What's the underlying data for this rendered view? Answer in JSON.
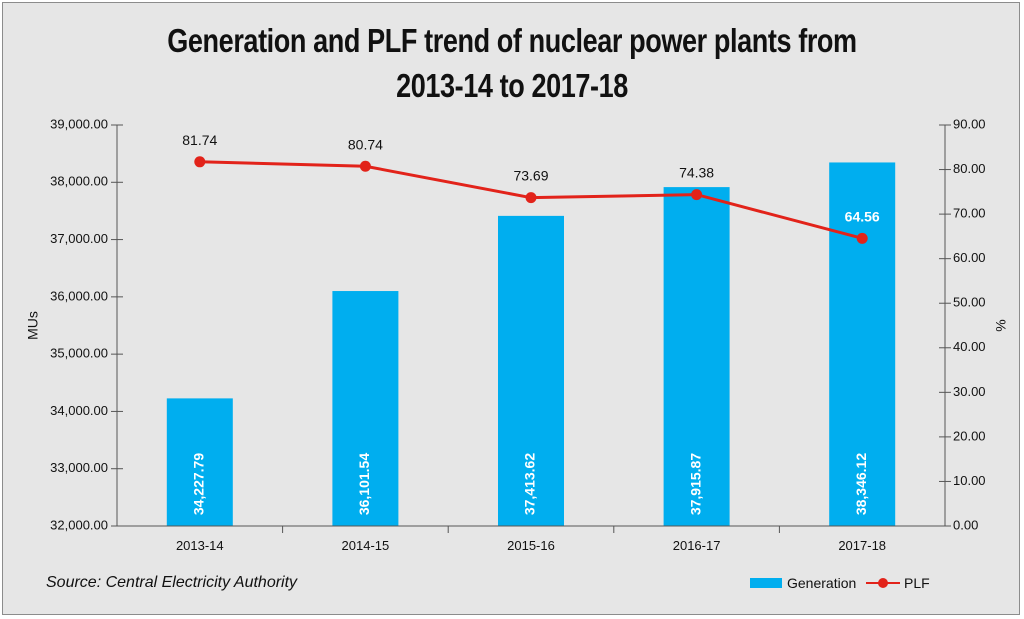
{
  "chart_data": {
    "type": "bar+line",
    "title_line1": "Generation and PLF trend of nuclear power plants from",
    "title_line2": "2013-14 to 2017-18",
    "categories": [
      "2013-14",
      "2014-15",
      "2015-16",
      "2016-17",
      "2017-18"
    ],
    "series": [
      {
        "name": "Generation",
        "type": "bar",
        "axis": "left",
        "values": [
          34227.79,
          36101.54,
          37413.62,
          37915.87,
          38346.12
        ],
        "labels": [
          "34,227.79",
          "36,101.54",
          "37,413.62",
          "37,915.87",
          "38,346.12"
        ],
        "color": "#00aeef"
      },
      {
        "name": "PLF",
        "type": "line",
        "axis": "right",
        "values": [
          81.74,
          80.74,
          73.69,
          74.38,
          64.56
        ],
        "labels": [
          "81.74",
          "80.74",
          "73.69",
          "74.38",
          "64.56"
        ],
        "color": "#e2231a"
      }
    ],
    "y_left": {
      "label": "MUs",
      "range": [
        32000,
        39000
      ],
      "ticks": [
        32000,
        33000,
        34000,
        35000,
        36000,
        37000,
        38000,
        39000
      ],
      "tick_labels": [
        "32,000.00",
        "33,000.00",
        "34,000.00",
        "35,000.00",
        "36,000.00",
        "37,000.00",
        "38,000.00",
        "39,000.00"
      ]
    },
    "y_right": {
      "label": "%",
      "range": [
        0,
        90
      ],
      "ticks": [
        0,
        10,
        20,
        30,
        40,
        50,
        60,
        70,
        80,
        90
      ],
      "tick_labels": [
        "0.00",
        "10.00",
        "20.00",
        "30.00",
        "40.00",
        "50.00",
        "60.00",
        "70.00",
        "80.00",
        "90.00"
      ]
    },
    "source": "Source: Central Electricity Authority",
    "legend": [
      "Generation",
      "PLF"
    ]
  }
}
